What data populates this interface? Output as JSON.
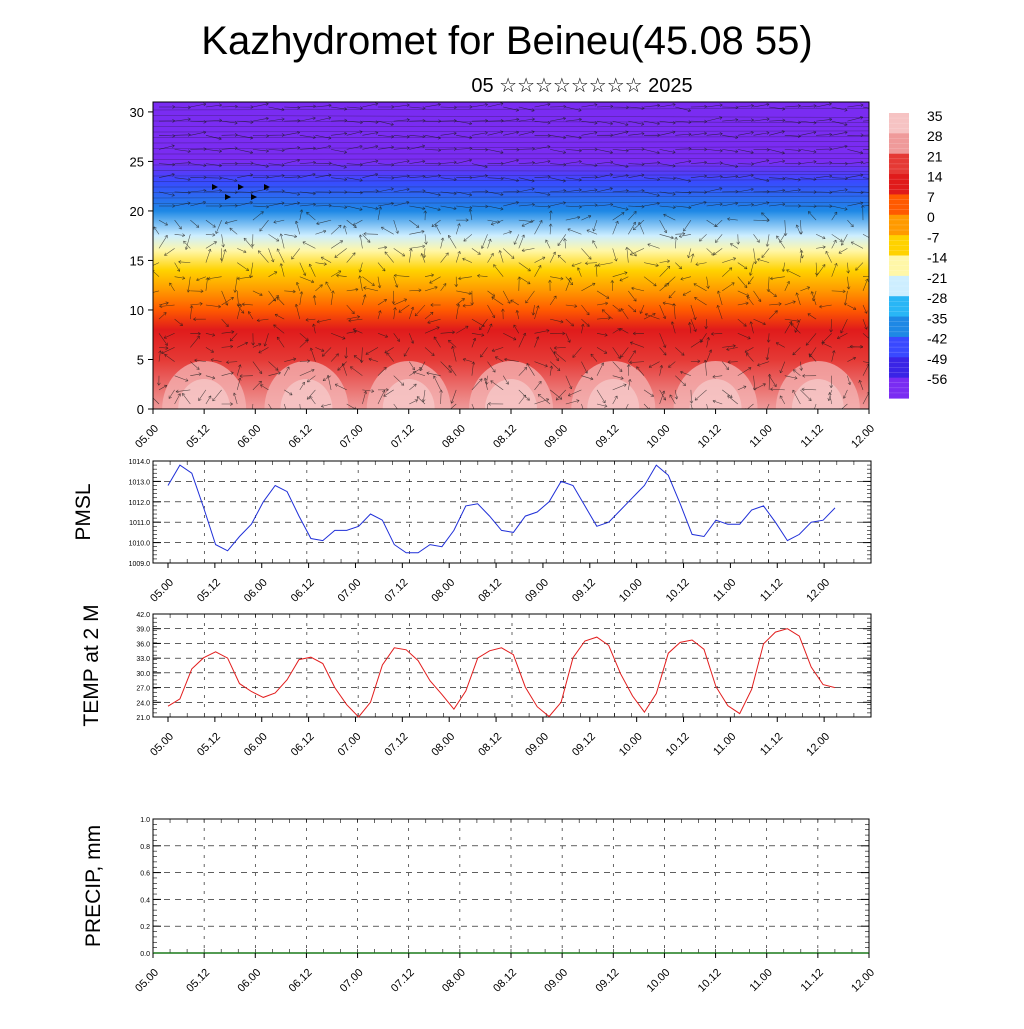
{
  "title": "Kazhydromet for Beineu(45.08 55)",
  "subtitle": "05 ☆☆☆☆☆☆☆☆ 2025",
  "time_ticks": [
    "05.00",
    "05.12",
    "06.00",
    "06.12",
    "07.00",
    "07.12",
    "08.00",
    "08.12",
    "09.00",
    "09.12",
    "10.00",
    "10.12",
    "11.00",
    "11.12",
    "12.00"
  ],
  "chart_data": [
    {
      "type": "heatmap",
      "ylim": [
        0,
        31
      ],
      "y_ticks": [
        "0",
        "5",
        "10",
        "15",
        "20",
        "25",
        "30"
      ],
      "colorbar_labels": [
        "35",
        "28",
        "21",
        "14",
        "7",
        "0",
        "-7",
        "-14",
        "-21",
        "-28",
        "-35",
        "-42",
        "-49",
        "-56"
      ],
      "colorbar_colors": [
        "#f6c3c3",
        "#ef9a9a",
        "#e53935",
        "#e01b1b",
        "#ff5a00",
        "#ff9a00",
        "#ffd200",
        "#fff7a8",
        "#cdeeff",
        "#29b6f6",
        "#1e88e5",
        "#3949ff",
        "#3a24e6",
        "#7a2cf2"
      ],
      "level_temperature_profile": [
        {
          "level": 0,
          "value": 34
        },
        {
          "level": 5,
          "value": 22
        },
        {
          "level": 8,
          "value": 14
        },
        {
          "level": 10,
          "value": 8
        },
        {
          "level": 12,
          "value": 2
        },
        {
          "level": 14,
          "value": -6
        },
        {
          "level": 16,
          "value": -13
        },
        {
          "level": 17.5,
          "value": -20
        },
        {
          "level": 20,
          "value": -30
        },
        {
          "level": 23,
          "value": -42
        },
        {
          "level": 25,
          "value": -52
        },
        {
          "level": 27,
          "value": -60
        },
        {
          "level": 31,
          "value": -62
        }
      ],
      "vectors": "wind barbs over field"
    },
    {
      "type": "line",
      "ylabel": "PMSL",
      "ylim": [
        1009.0,
        1014.0
      ],
      "y_ticks": [
        "1009.0",
        "1010.0",
        "1011.0",
        "1012.0",
        "1013.0",
        "1014.0"
      ],
      "series": [
        {
          "color": "#1f2fd8",
          "values": [
            1012.8,
            1013.8,
            1013.4,
            1011.7,
            1009.9,
            1009.6,
            1010.3,
            1010.9,
            1012.0,
            1012.8,
            1012.5,
            1011.3,
            1010.2,
            1010.1,
            1010.6,
            1010.6,
            1010.8,
            1011.4,
            1011.1,
            1009.9,
            1009.5,
            1009.5,
            1009.9,
            1009.8,
            1010.6,
            1011.8,
            1011.9,
            1011.3,
            1010.6,
            1010.5,
            1011.3,
            1011.5,
            1012.0,
            1013.0,
            1012.8,
            1011.8,
            1010.8,
            1011.0,
            1011.6,
            1012.2,
            1012.8,
            1013.8,
            1013.3,
            1011.9,
            1010.4,
            1010.3,
            1011.1,
            1010.9,
            1010.9,
            1011.6,
            1011.8,
            1011.0,
            1010.1,
            1010.4,
            1011.0,
            1011.1,
            1011.7
          ]
        }
      ]
    },
    {
      "type": "line",
      "ylabel": "TEMP at 2 M",
      "ylim": [
        21.0,
        42.0
      ],
      "y_ticks": [
        "21.0",
        "24.0",
        "27.0",
        "30.0",
        "33.0",
        "36.0",
        "39.0",
        "42.0"
      ],
      "series": [
        {
          "color": "#e21d1d",
          "values": [
            23.2,
            24.7,
            30.8,
            33.1,
            34.3,
            33.0,
            27.8,
            26.2,
            25.0,
            25.9,
            28.6,
            32.7,
            33.2,
            31.9,
            27.0,
            23.5,
            21.0,
            24.0,
            31.6,
            35.1,
            34.7,
            32.5,
            28.4,
            25.6,
            22.6,
            26.3,
            33.0,
            34.5,
            35.1,
            33.7,
            27.1,
            23.1,
            21.1,
            24.0,
            33.1,
            36.5,
            37.3,
            35.6,
            29.8,
            25.3,
            22.0,
            25.8,
            34.0,
            36.2,
            36.7,
            34.8,
            27.2,
            23.3,
            21.7,
            26.6,
            35.9,
            38.3,
            39.0,
            37.5,
            31.2,
            27.6,
            27.0
          ]
        }
      ]
    },
    {
      "type": "bar",
      "ylabel": "PRECIP, mm",
      "ylim": [
        0.0,
        1.0
      ],
      "y_ticks": [
        "0.0",
        "0.2",
        "0.4",
        "0.6",
        "0.8",
        "1.0"
      ],
      "values": []
    }
  ]
}
